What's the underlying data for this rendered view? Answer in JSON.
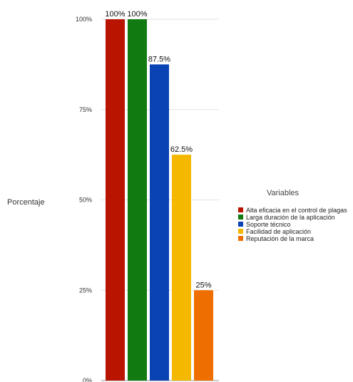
{
  "chart_data": {
    "type": "bar",
    "title": "",
    "xlabel": "",
    "ylabel": "Porcentaje",
    "ylim": [
      0,
      100
    ],
    "yticks": [
      0,
      25,
      50,
      75,
      100
    ],
    "ytick_labels": [
      "0%",
      "25%",
      "50%",
      "75%",
      "100%"
    ],
    "grid": true,
    "legend": {
      "title": "Variables",
      "placement": "right"
    },
    "categories": [
      "Alta eficacia en el control de plagas",
      "Larga duración de la aplicación",
      "Soporte técnico",
      "Facilidad de aplicación",
      "Reputación de la marca"
    ],
    "values": [
      100,
      100,
      87.5,
      62.5,
      25
    ],
    "data_labels": [
      "100%",
      "100%",
      "87.5%",
      "62.5%",
      "25%"
    ],
    "colors": [
      "#b81400",
      "#117a10",
      "#0a43b4",
      "#f5b800",
      "#ee6f00"
    ]
  }
}
